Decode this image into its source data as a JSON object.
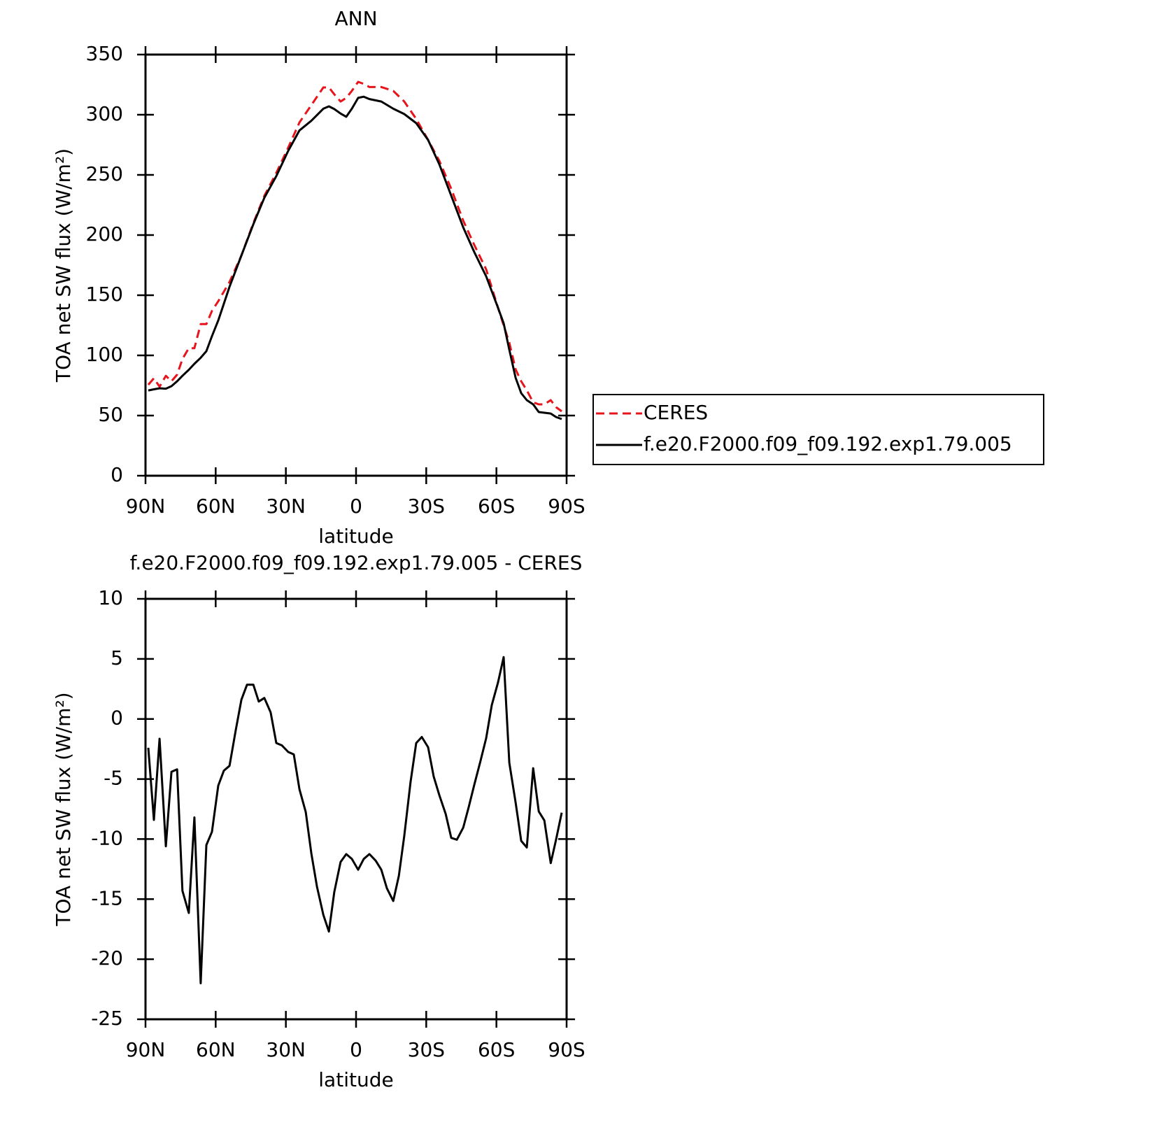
{
  "chart_data": [
    {
      "type": "line",
      "title": "ANN",
      "xlabel": "latitude",
      "ylabel": "TOA net SW flux (W/m²)",
      "x": [
        88.8,
        86.4,
        84,
        81.3,
        78.9,
        76.5,
        74.2,
        71.5,
        69.1,
        66.4,
        64.0,
        61.6,
        58.9,
        54.1,
        49.0,
        43.9,
        39.2,
        34.1,
        29.0,
        24.2,
        19.1,
        14.0,
        11.6,
        9.3,
        6.6,
        4.2,
        1.8,
        -0.9,
        -3.3,
        -5.7,
        -10.8,
        -15.9,
        -20.6,
        -25.7,
        -30.8,
        -35.6,
        -40.7,
        -45.8,
        -50.5,
        -55.6,
        -60.7,
        -63.1,
        -65.5,
        -68.2,
        -70.6,
        -73.0,
        -75.7,
        -78.1,
        -80.5,
        -83.2,
        -85.5,
        -87.9
      ],
      "series": [
        {
          "name": "CERES",
          "color": "#e8141b",
          "linestyle": "dashed",
          "values": [
            75.6,
            81,
            74,
            83,
            78.5,
            84,
            97,
            106,
            106,
            126,
            126,
            137,
            145,
            161,
            183,
            210,
            232.6,
            251.7,
            272.7,
            293.6,
            308,
            322.7,
            322.7,
            317,
            311,
            314,
            319.8,
            327.3,
            325.6,
            323,
            323,
            319.8,
            311,
            296.5,
            279,
            261.6,
            238.4,
            212,
            191.9,
            171.5,
            139.5,
            125,
            110.5,
            88.4,
            78.5,
            71,
            61,
            59.3,
            59.3,
            62.8,
            57,
            53.5
          ]
        },
        {
          "name": "f.e20.F2000.f09_f09.192.exp1.79.005",
          "color": "#000000",
          "linestyle": "solid",
          "values": [
            70.9,
            71.8,
            72.7,
            72.3,
            74.4,
            78.5,
            83,
            88,
            93,
            98,
            103.5,
            116,
            129,
            157,
            183,
            209,
            231,
            249,
            270,
            287,
            295,
            305,
            307,
            304.7,
            301,
            298.3,
            305,
            314,
            315,
            313,
            311,
            305,
            300.6,
            293,
            279,
            258.7,
            232.6,
            206.4,
            186,
            165.7,
            139.5,
            126.7,
            104.7,
            81.4,
            68.6,
            62.8,
            59.3,
            52.9,
            52.3,
            51.7,
            48.8,
            47.1
          ]
        }
      ],
      "xlim": [
        90,
        -90
      ],
      "xticks": [
        {
          "value": 90,
          "label": "90N"
        },
        {
          "value": 60,
          "label": "60N"
        },
        {
          "value": 30,
          "label": "30N"
        },
        0,
        {
          "value": -30,
          "label": "30S"
        },
        {
          "value": -60,
          "label": "60S"
        },
        {
          "value": -90,
          "label": "90S"
        }
      ],
      "ylim": [
        0,
        350
      ],
      "yticks": [
        0,
        50,
        100,
        150,
        200,
        250,
        300,
        350
      ],
      "legend": "right"
    },
    {
      "type": "line",
      "title": "f.e20.F2000.f09_f09.192.exp1.79.005 - CERES",
      "xlabel": "latitude",
      "ylabel": "TOA net SW flux (W/m²)",
      "x": [
        88.8,
        86.4,
        84,
        81.3,
        78.9,
        76.5,
        74.2,
        71.5,
        69.1,
        66.4,
        64.0,
        61.6,
        58.9,
        56.5,
        54.1,
        51.4,
        49.0,
        46.6,
        43.9,
        41.6,
        39.2,
        36.5,
        34.1,
        31.7,
        29.0,
        26.6,
        24.2,
        21.5,
        19.1,
        16.7,
        14.0,
        11.6,
        9.3,
        6.6,
        4.2,
        1.8,
        -0.9,
        -3.3,
        -5.7,
        -8.4,
        -10.8,
        -13.2,
        -15.9,
        -18.3,
        -20.6,
        -23.3,
        -25.7,
        -28.1,
        -30.8,
        -33.2,
        -35.6,
        -38.3,
        -40.7,
        -43.1,
        -45.8,
        -48.2,
        -50.5,
        -53.2,
        -55.6,
        -58.0,
        -60.7,
        -63.1,
        -65.5,
        -68.2,
        -70.6,
        -73.0,
        -75.7,
        -78.1,
        -80.5,
        -83.2,
        -85.5,
        -87.9
      ],
      "series": [
        {
          "color": "#000000",
          "linestyle": "solid",
          "values": [
            -2.4,
            -8.4,
            -1.65,
            -10.6,
            -4.4,
            -4.2,
            -14.3,
            -16.15,
            -8.2,
            -22.0,
            -10.5,
            -9.4,
            -5.55,
            -4.3,
            -3.9,
            -0.9,
            1.6,
            2.85,
            2.85,
            1.45,
            1.75,
            0.55,
            -2.0,
            -2.2,
            -2.75,
            -2.95,
            -5.85,
            -7.75,
            -11.2,
            -13.95,
            -16.3,
            -17.7,
            -14.4,
            -11.9,
            -11.25,
            -11.65,
            -12.55,
            -11.65,
            -11.25,
            -11.8,
            -12.55,
            -14.1,
            -15.15,
            -13.05,
            -9.75,
            -5.25,
            -2.0,
            -1.5,
            -2.35,
            -4.8,
            -6.35,
            -7.9,
            -9.9,
            -10.05,
            -9.05,
            -7.3,
            -5.5,
            -3.5,
            -1.6,
            1.15,
            3.05,
            5.15,
            -3.65,
            -6.95,
            -10.15,
            -10.7,
            -4.1,
            -7.7,
            -8.45,
            -12.0,
            -10.05,
            -7.8
          ]
        }
      ],
      "xlim": [
        90,
        -90
      ],
      "xticks": [
        {
          "value": 90,
          "label": "90N"
        },
        {
          "value": 60,
          "label": "60N"
        },
        {
          "value": 30,
          "label": "30N"
        },
        0,
        {
          "value": -30,
          "label": "30S"
        },
        {
          "value": -60,
          "label": "60S"
        },
        {
          "value": -90,
          "label": "90S"
        }
      ],
      "ylim": [
        -25,
        10
      ],
      "yticks": [
        -25,
        -20,
        -15,
        -10,
        -5,
        0,
        5,
        10
      ]
    }
  ]
}
